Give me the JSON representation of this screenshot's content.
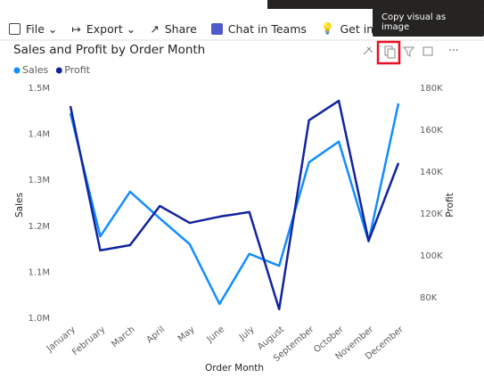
{
  "toolbar": {
    "items": [
      "File",
      "Export",
      "Share",
      "Chat in Teams",
      "Get insights"
    ]
  },
  "tooltip": "Copy visual as image",
  "chart_data": {
    "type": "line",
    "title": "Sales and Profit by Order Month",
    "x_label": "Order Month",
    "y_label": "Sales",
    "y2_label": "Profit",
    "categories": [
      "January",
      "February",
      "March",
      "April",
      "May",
      "June",
      "July",
      "August",
      "September",
      "October",
      "November",
      "December"
    ],
    "series": [
      {
        "name": "Sales",
        "color": "#118dff",
        "values": [
          1446000,
          1178000,
          1275000,
          1217000,
          1161000,
          1031000,
          1140000,
          1114000,
          1339000,
          1384000,
          1167000,
          1467000
        ]
      },
      {
        "name": "Profit",
        "color": "#12239e",
        "axis": "y2",
        "values": [
          171500,
          102600,
          105100,
          123800,
          115700,
          118700,
          120900,
          74500,
          164700,
          174000,
          107200,
          144300
        ]
      }
    ],
    "ylim": [
      1000000,
      1500000
    ],
    "yticks": [
      {
        "value": 1000000,
        "label": "1.0M"
      },
      {
        "value": 1100000,
        "label": "1.1M"
      },
      {
        "value": 1200000,
        "label": "1.2M"
      },
      {
        "value": 1300000,
        "label": "1.3M"
      },
      {
        "value": 1400000,
        "label": "1.4M"
      },
      {
        "value": 1500000,
        "label": "1.5M"
      }
    ],
    "y2lim": [
      70200,
      180000
    ],
    "y2ticks": [
      {
        "value": 80000,
        "label": "80K"
      },
      {
        "value": 100000,
        "label": "100K"
      },
      {
        "value": 120000,
        "label": "120K"
      },
      {
        "value": 140000,
        "label": "140K"
      },
      {
        "value": 160000,
        "label": "160K"
      },
      {
        "value": 180000,
        "label": "180K"
      }
    ],
    "grid": false,
    "legend": "top-left"
  }
}
